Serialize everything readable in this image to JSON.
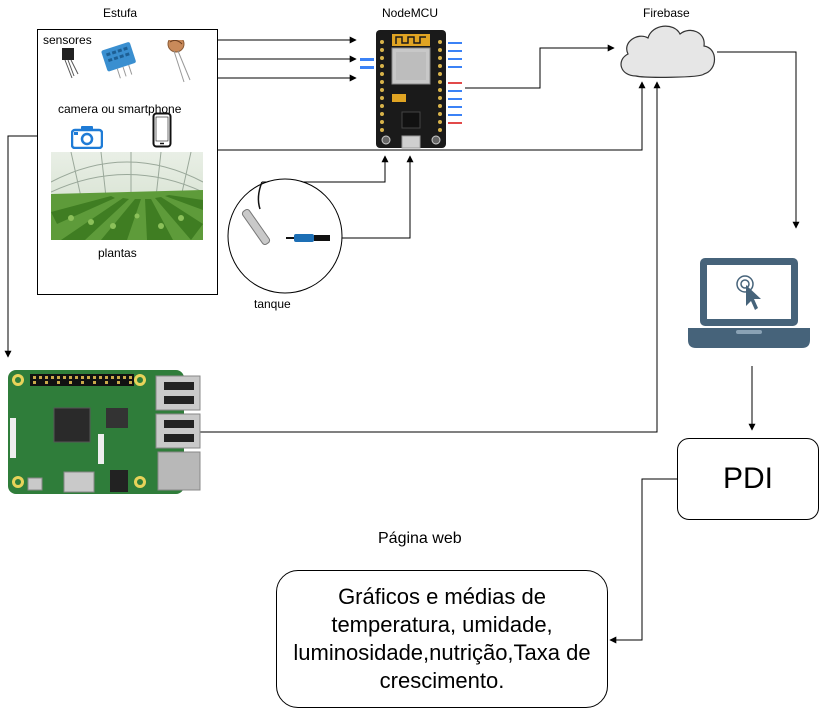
{
  "labels": {
    "estufa": "Estufa",
    "nodemcu": "NodeMCU",
    "firebase": "Firebase",
    "sensores": "sensores",
    "camera": "camera  ou smartphone",
    "plantas": "plantas",
    "tanque": "tanque",
    "pagina_web": "Página web"
  },
  "boxes": {
    "pdi": "PDI",
    "graficos": "Gráficos e médias de temperatura, umidade, luminosidade,nutrição,Taxa de crescimento."
  },
  "icons": {
    "camera": "camera-icon",
    "phone": "smartphone-icon",
    "cloud": "cloud-icon",
    "laptop": "laptop-icon",
    "board": "nodemcu-board",
    "raspberry": "raspberry-pi-board"
  },
  "colors": {
    "camera_blue": "#1e7bd6",
    "laptop_blue": "#46637a",
    "board_black": "#1a1a1a",
    "pcb_green": "#2f7d3a"
  }
}
